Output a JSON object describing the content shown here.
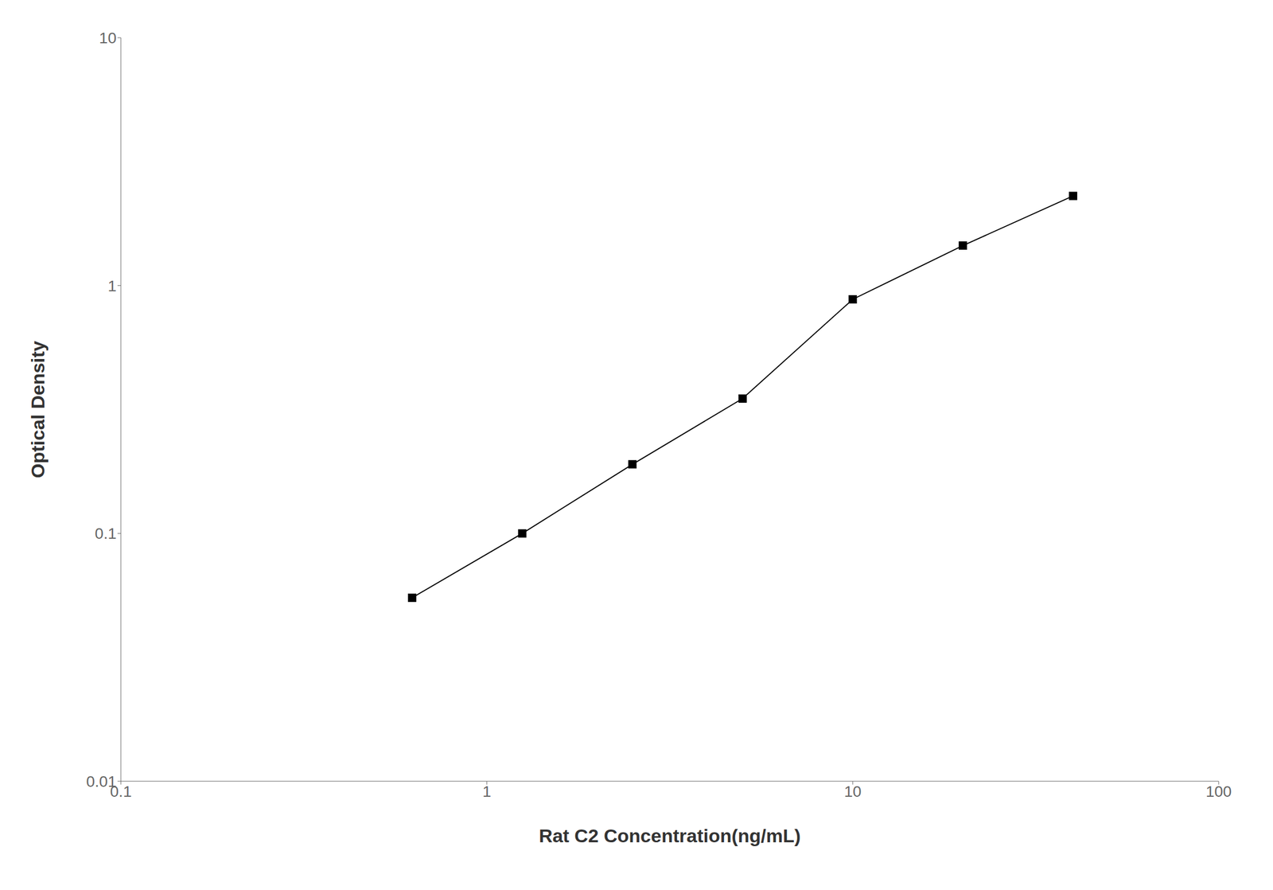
{
  "chart_data": {
    "type": "line",
    "x": [
      0.625,
      1.25,
      2.5,
      5.0,
      10.0,
      20.0,
      40.0
    ],
    "values": [
      0.055,
      0.1,
      0.19,
      0.35,
      0.88,
      1.45,
      2.3
    ],
    "xlabel": "Rat C2 Concentration(ng/mL)",
    "ylabel": "Optical Density",
    "xlim": [
      0.1,
      100
    ],
    "ylim": [
      0.01,
      10
    ],
    "xticks": [
      0.1,
      1,
      10,
      100
    ],
    "yticks": [
      0.01,
      0.1,
      1,
      10
    ],
    "log": true,
    "grid": false,
    "color": "#000000",
    "marker": "square"
  }
}
